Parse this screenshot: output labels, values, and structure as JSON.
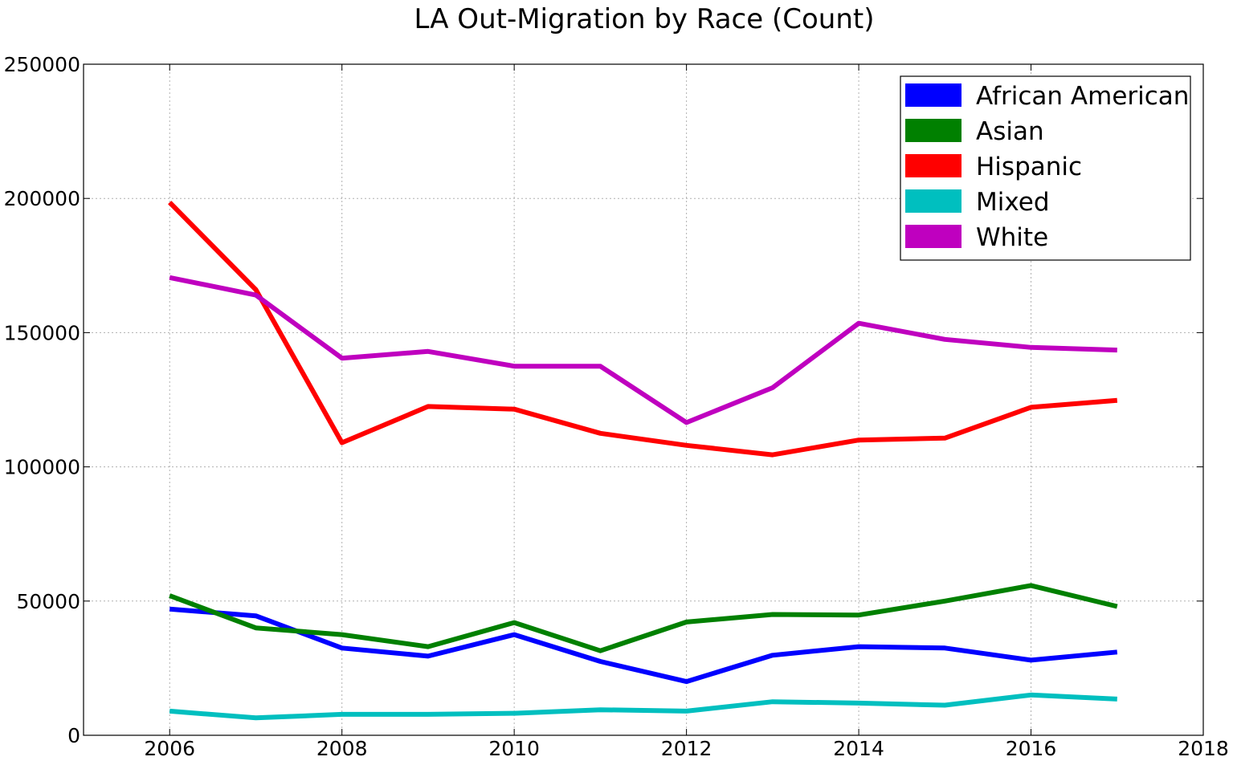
{
  "chart_data": {
    "type": "line",
    "title": "LA Out-Migration by Race (Count)",
    "xlabel": "",
    "ylabel": "",
    "xlim": [
      2005,
      2018
    ],
    "ylim": [
      0,
      250000
    ],
    "xticks": [
      "2006",
      "2008",
      "2010",
      "2012",
      "2014",
      "2016",
      "2018"
    ],
    "yticks": [
      "0",
      "50000",
      "100000",
      "150000",
      "200000",
      "250000"
    ],
    "grid": true,
    "legend_position": "top-right",
    "x": [
      2006,
      2007,
      2008,
      2009,
      2010,
      2011,
      2012,
      2013,
      2014,
      2015,
      2016,
      2017
    ],
    "series": [
      {
        "name": "African American",
        "color": "#0000ff",
        "values": [
          47000,
          44500,
          32500,
          29500,
          37500,
          27500,
          20000,
          29800,
          33000,
          32500,
          28000,
          31000
        ]
      },
      {
        "name": "Asian",
        "color": "#008000",
        "values": [
          52000,
          40000,
          37500,
          33000,
          42000,
          31500,
          42200,
          45000,
          44800,
          50000,
          55800,
          48000
        ]
      },
      {
        "name": "Hispanic",
        "color": "#ff0000",
        "values": [
          198500,
          166000,
          109000,
          122500,
          121500,
          112500,
          108000,
          104500,
          110000,
          110700,
          122200,
          124800
        ]
      },
      {
        "name": "Mixed",
        "color": "#00bfbf",
        "values": [
          9000,
          6500,
          7800,
          7800,
          8200,
          9500,
          9000,
          12500,
          12000,
          11200,
          15000,
          13500
        ]
      },
      {
        "name": "White",
        "color": "#bf00bf",
        "values": [
          170500,
          164000,
          140500,
          143000,
          137500,
          137500,
          116500,
          129500,
          153500,
          147500,
          144500,
          143500
        ]
      }
    ]
  }
}
